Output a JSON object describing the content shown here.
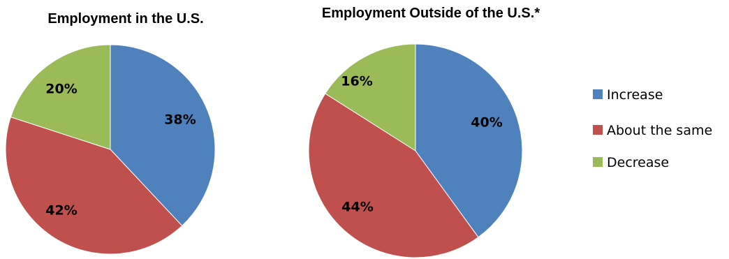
{
  "chart_data": [
    {
      "type": "pie",
      "title": "Employment in the U.S.",
      "categories": [
        "Increase",
        "About the same",
        "Decrease"
      ],
      "values": [
        38,
        42,
        20
      ],
      "labels": [
        "38%",
        "42%",
        "20%"
      ]
    },
    {
      "type": "pie",
      "title": "Employment Outside of the U.S.*",
      "categories": [
        "Increase",
        "About the same",
        "Decrease"
      ],
      "values": [
        40,
        44,
        16
      ],
      "labels": [
        "40%",
        "44%",
        "16%"
      ]
    }
  ],
  "legend": {
    "placement": "right",
    "items": [
      {
        "label": "Increase",
        "color": "#4F81BD"
      },
      {
        "label": "About the same",
        "color": "#C0504D"
      },
      {
        "label": "Decrease",
        "color": "#9BBB59"
      }
    ]
  },
  "colors": {
    "increase": "#4F81BD",
    "about_the_same": "#C0504D",
    "decrease": "#9BBB59"
  }
}
